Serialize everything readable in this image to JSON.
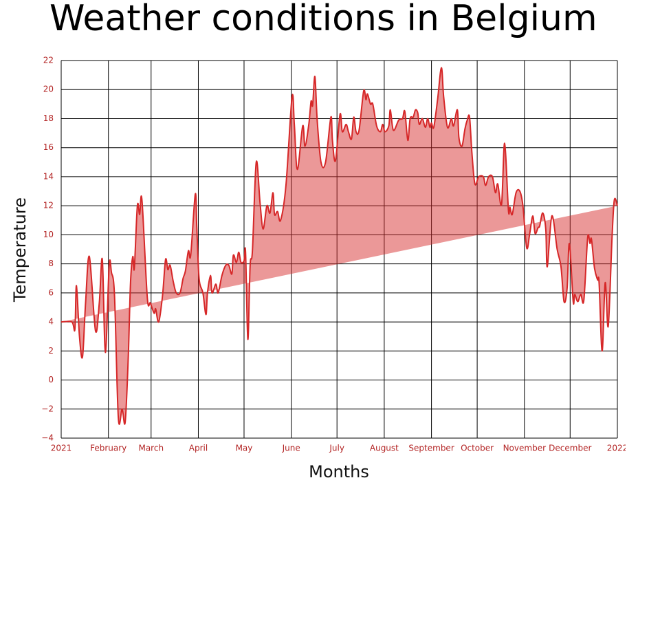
{
  "chart_data": {
    "type": "line",
    "title": "Weather conditions in Belgium",
    "xlabel": "Months",
    "ylabel": "Temperature",
    "fill": "toself",
    "grid": true,
    "series": [
      {
        "color": "#d62728",
        "fillcolor": "rgba(214,39,40,0.48)",
        "x": [
          0,
          7,
          9,
          10,
          12,
          14,
          16,
          18.5,
          22.5,
          25,
          27,
          29,
          31.5,
          33,
          35,
          37.5,
          40,
          42,
          44,
          45.5,
          47,
          48,
          50,
          51.5,
          53,
          56.5,
          58.5,
          61,
          62,
          64,
          66.5,
          68.5,
          70,
          71.5,
          73.5,
          75.5,
          78,
          80,
          81.5,
          83.5,
          85,
          88,
          89,
          90.5,
          93,
          95,
          96,
          98,
          99,
          101.5,
          103,
          105.5,
          108,
          110,
          112,
          113,
          115,
          116.5,
          118,
          120,
          121,
          122.5,
          124,
          125.5,
          128,
          130.5,
          132.5,
          135,
          137,
          139,
          140,
          142,
          144,
          147.5,
          151.5,
          153,
          155,
          158.5,
          160,
          162.5,
          164,
          165,
          166.5,
          168,
          170.5,
          173.5,
          177,
          178,
          180,
          183,
          184.5,
          187,
          188.5,
          190.5,
          192,
          193.5,
          195.5,
          198.5,
          200,
          201,
          203,
          204.5,
          207,
          209.5,
          211,
          212.5,
          215,
          216,
          218,
          221.5,
          224,
          225.5,
          227.5,
          229,
          231,
          232.5,
          234,
          235,
          237,
          239,
          240.5,
          242,
          243,
          244.5,
          247,
          249.5,
          251,
          253.5,
          256,
          257.5,
          260,
          261,
          263,
          265,
          266.5,
          268,
          269.5,
          271.5,
          274,
          277,
          278.5,
          280.5,
          283,
          285,
          286.5,
          289,
          291,
          293.5,
          294.5,
          296,
          298.5,
          301,
          303,
          305.5,
          307.5,
          309.5,
          311,
          313,
          314,
          316,
          318,
          319,
          322,
          325.5,
          328,
          330,
          332,
          333.5,
          336,
          337,
          339,
          341,
          343,
          345.5,
          347,
          348,
          350,
          352,
          353,
          355,
          357,
          359,
          361.5,
          363,
          365
        ],
        "values": [
          4,
          4,
          3.5,
          6.5,
          3,
          1.6,
          5.3,
          8.5,
          3.4,
          5.3,
          8.3,
          1.9,
          7.9,
          7.4,
          5.8,
          -2.6,
          -2,
          -2.9,
          1.5,
          6.7,
          8.5,
          7.7,
          12,
          11.4,
          12.4,
          5.7,
          5.3,
          4.6,
          4.9,
          4,
          5.8,
          8.3,
          7.6,
          7.9,
          6.8,
          6,
          6,
          7,
          7.5,
          8.9,
          8.6,
          12.8,
          10.5,
          7,
          6,
          4.5,
          6,
          7.2,
          6,
          6.6,
          6,
          7.2,
          7.9,
          7.9,
          7.3,
          8.6,
          8.1,
          8.8,
          8.1,
          8.2,
          8.8,
          2.8,
          7.9,
          8.9,
          15,
          12.2,
          10.4,
          12,
          11.5,
          12.9,
          11.4,
          11.6,
          11,
          13.4,
          19.5,
          17.6,
          14.5,
          17.5,
          16.1,
          17.6,
          19.2,
          18.9,
          20.9,
          17.9,
          15,
          15,
          18.1,
          16.5,
          15.1,
          18.3,
          17.1,
          17.6,
          17.1,
          16.6,
          18.1,
          17.1,
          17.2,
          19.9,
          19.3,
          19.7,
          19,
          19,
          17.5,
          17.1,
          17.6,
          17.1,
          17.5,
          18.6,
          17.2,
          17.9,
          18,
          18.5,
          16.5,
          18,
          18.1,
          18.6,
          18.4,
          17.6,
          18,
          17.4,
          18,
          17.4,
          17.7,
          17.4,
          19.3,
          21.5,
          19.5,
          17.4,
          18,
          17.5,
          18.6,
          16.7,
          16.1,
          17.3,
          17.9,
          18.1,
          15.7,
          13.5,
          14,
          14,
          13.4,
          14,
          14,
          12.9,
          13.5,
          12.1,
          16.3,
          11.7,
          11.9,
          11.4,
          12.9,
          13,
          12,
          9.1,
          10.1,
          11.3,
          10.1,
          10.5,
          10.6,
          11.5,
          10.4,
          7.8,
          11.3,
          9,
          7.8,
          5.4,
          6.3,
          9.4,
          5.4,
          5.9,
          5.4,
          5.9,
          5.5,
          9.8,
          9.4,
          9.7,
          7.7,
          6.9,
          6.7,
          2,
          6.7,
          3.7,
          9.8,
          12.4,
          12
        ]
      }
    ],
    "xlim": [
      0,
      365
    ],
    "xticks": [
      {
        "value": 0,
        "label": "2021"
      },
      {
        "value": 31,
        "label": "February"
      },
      {
        "value": 59,
        "label": "March"
      },
      {
        "value": 90,
        "label": "April"
      },
      {
        "value": 120,
        "label": "May"
      },
      {
        "value": 151,
        "label": "June"
      },
      {
        "value": 181,
        "label": "July"
      },
      {
        "value": 212,
        "label": "August"
      },
      {
        "value": 243,
        "label": "September"
      },
      {
        "value": 273,
        "label": "October"
      },
      {
        "value": 304,
        "label": "November"
      },
      {
        "value": 334,
        "label": "December"
      },
      {
        "value": 365,
        "label": "2022"
      }
    ],
    "ylim": [
      -4,
      22
    ],
    "yticks": [
      {
        "value": -4,
        "label": "−4"
      },
      {
        "value": -2,
        "label": "−2"
      },
      0,
      2,
      4,
      6,
      8,
      10,
      12,
      14,
      16,
      18,
      20,
      22
    ]
  }
}
